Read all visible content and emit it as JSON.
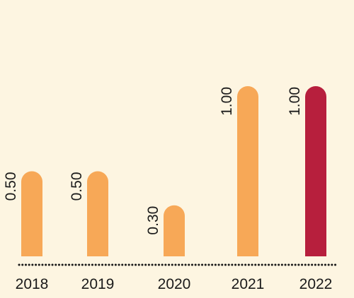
{
  "colors": {
    "background": "#fdf5e1",
    "bar_default": "#f7a857",
    "bar_highlight": "#b71f3d",
    "axis": "#1a1a1a"
  },
  "chart_data": {
    "type": "bar",
    "categories": [
      "2018",
      "2019",
      "2020",
      "2021",
      "2022"
    ],
    "values": [
      0.5,
      0.5,
      0.3,
      1.0,
      1.0
    ],
    "value_labels": [
      "0.50",
      "0.50",
      "0.30",
      "1.00",
      "1.00"
    ],
    "highlight_index": 4,
    "ylim": [
      0,
      1.0
    ],
    "grid": false,
    "legend": "none",
    "title": "",
    "xlabel": "",
    "ylabel": ""
  }
}
